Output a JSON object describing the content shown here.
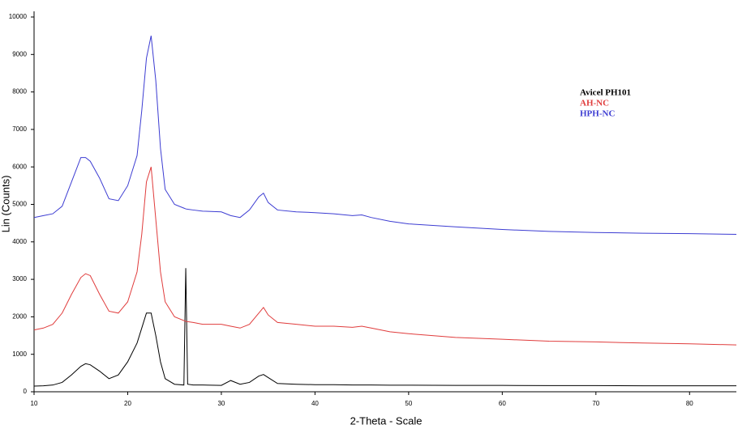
{
  "chart_data": {
    "type": "line",
    "xlabel": "2-Theta - Scale",
    "ylabel": "Lin (Counts)",
    "x": [
      10,
      11,
      12,
      13,
      14,
      15,
      15.5,
      16,
      17,
      18,
      19,
      20,
      21,
      21.5,
      22,
      22.5,
      23,
      23.5,
      24,
      25,
      26,
      26.2,
      26.4,
      27,
      28,
      30,
      31,
      32,
      33,
      34,
      34.5,
      35,
      36,
      38,
      40,
      42,
      44,
      45,
      46,
      48,
      50,
      55,
      60,
      65,
      70,
      75,
      80,
      85
    ],
    "series": [
      {
        "name": "Avicel PH101",
        "color": "#000000",
        "values": [
          150,
          160,
          180,
          250,
          450,
          680,
          750,
          720,
          550,
          350,
          450,
          800,
          1300,
          1700,
          2100,
          2100,
          1500,
          800,
          350,
          200,
          180,
          3300,
          200,
          180,
          180,
          170,
          300,
          200,
          250,
          420,
          460,
          380,
          220,
          200,
          190,
          190,
          180,
          180,
          180,
          175,
          175,
          170,
          170,
          165,
          165,
          160,
          160,
          160
        ]
      },
      {
        "name": "AH-NC",
        "color": "#e03c3c",
        "values": [
          1650,
          1700,
          1800,
          2100,
          2600,
          3050,
          3150,
          3100,
          2600,
          2150,
          2100,
          2400,
          3200,
          4200,
          5600,
          6000,
          4600,
          3200,
          2400,
          2000,
          1900,
          1880,
          1870,
          1850,
          1800,
          1800,
          1750,
          1700,
          1800,
          2100,
          2250,
          2050,
          1850,
          1800,
          1750,
          1750,
          1720,
          1750,
          1700,
          1600,
          1550,
          1450,
          1400,
          1350,
          1330,
          1300,
          1280,
          1250
        ]
      },
      {
        "name": "HPH-NC",
        "color": "#3c3cd2",
        "values": [
          4650,
          4700,
          4750,
          4950,
          5600,
          6250,
          6250,
          6150,
          5700,
          5150,
          5100,
          5500,
          6300,
          7500,
          8900,
          9500,
          8300,
          6500,
          5400,
          5000,
          4900,
          4880,
          4870,
          4850,
          4820,
          4800,
          4700,
          4650,
          4850,
          5200,
          5300,
          5050,
          4850,
          4800,
          4780,
          4750,
          4700,
          4720,
          4650,
          4550,
          4480,
          4400,
          4330,
          4280,
          4250,
          4230,
          4220,
          4200
        ]
      }
    ],
    "xlim": [
      10,
      85
    ],
    "xticks": [
      10,
      20,
      30,
      40,
      50,
      60,
      70,
      80
    ],
    "ylim": [
      0,
      10000
    ],
    "yticks": [
      0,
      1000,
      2000,
      3000,
      4000,
      5000,
      6000,
      7000,
      8000,
      9000,
      10000
    ],
    "grid": false
  }
}
